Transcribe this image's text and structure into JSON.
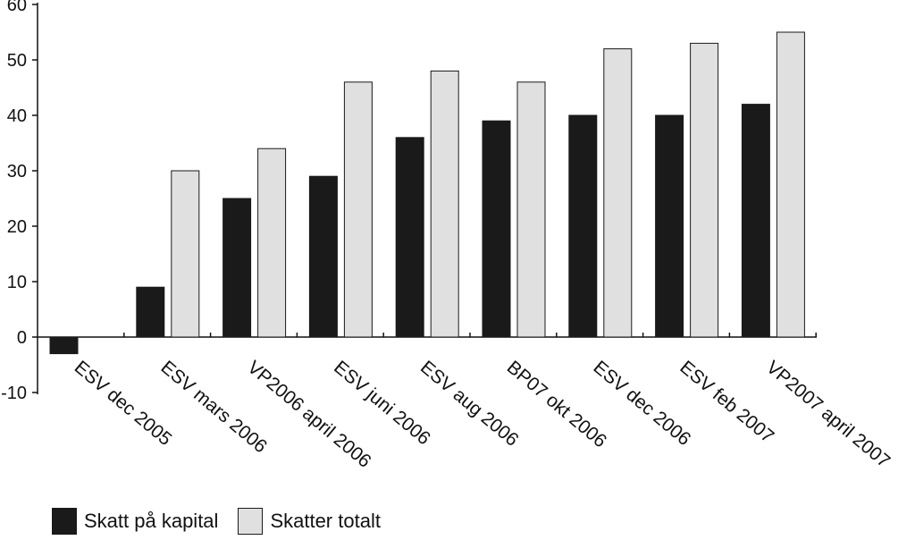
{
  "chart_data": {
    "type": "bar",
    "categories": [
      "ESV dec 2005",
      "ESV mars 2006",
      "VP2006 april 2006",
      "ESV juni 2006",
      "ESV aug 2006",
      "BP07 okt 2006",
      "ESV dec 2006",
      "ESV feb 2007",
      "VP2007 april 2007"
    ],
    "series": [
      {
        "name": "Skatt på kapital",
        "color": "#1a1a1a",
        "values": [
          -3,
          9,
          25,
          29,
          36,
          39,
          40,
          40,
          42
        ]
      },
      {
        "name": "Skatter totalt",
        "color": "#e0e0e0",
        "values": [
          null,
          30,
          34,
          46,
          48,
          46,
          52,
          53,
          55
        ]
      }
    ],
    "yticks": [
      "60",
      "50",
      "40",
      "30",
      "20",
      "10",
      "0",
      "-10"
    ],
    "ylim": [
      -10,
      60
    ],
    "title": "",
    "xlabel": "",
    "ylabel": "",
    "grid": false,
    "legend_position": "bottom-left"
  }
}
